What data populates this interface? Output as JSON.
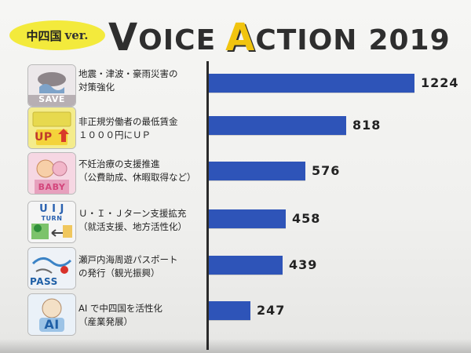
{
  "header": {
    "badge": "中四国",
    "badge_ver": "ver.",
    "title_v": "V",
    "title_oice": "OICE",
    "title_a": "A",
    "title_ction": "CTION",
    "title_year": "2019"
  },
  "icons": [
    {
      "name": "save-icon",
      "label": "SAVE",
      "color": "#a9a2a6"
    },
    {
      "name": "wage-up-icon",
      "label": "UP",
      "color": "#e8d84a"
    },
    {
      "name": "baby-icon",
      "label": "BABY",
      "color": "#e89ab8"
    },
    {
      "name": "uij-turn-icon",
      "label": "U I J",
      "sub": "TURN",
      "color": "#5aa6d6"
    },
    {
      "name": "pass-icon",
      "label": "PASS",
      "color": "#2d6fb0"
    },
    {
      "name": "ai-icon",
      "label": "AI",
      "color": "#6fa8dc"
    }
  ],
  "chart_data": {
    "type": "bar",
    "orientation": "horizontal",
    "title": "VOICE ACTION 2019",
    "categories": [
      [
        "地震・津波・豪雨災害の",
        "対策強化"
      ],
      [
        "非正規労働者の最低賃金",
        "１０００円にＵＰ"
      ],
      [
        "不妊治療の支援推進",
        "（公費助成、休暇取得など）"
      ],
      [
        "Ｕ・Ｉ・Ｊターン支援拡充",
        "（就活支援、地方活性化）"
      ],
      [
        "瀬戸内海周遊パスポート",
        "の発行（観光振興）"
      ],
      [
        "AI で中四国を活性化",
        "（産業発展）"
      ]
    ],
    "values": [
      1224,
      818,
      576,
      458,
      439,
      247
    ],
    "value_labels": [
      "1224",
      "818",
      "576",
      "458",
      "439",
      "247"
    ],
    "xlim": [
      0,
      1224
    ],
    "bar_color": "#2e54b8",
    "grid": false,
    "legend": "none"
  }
}
